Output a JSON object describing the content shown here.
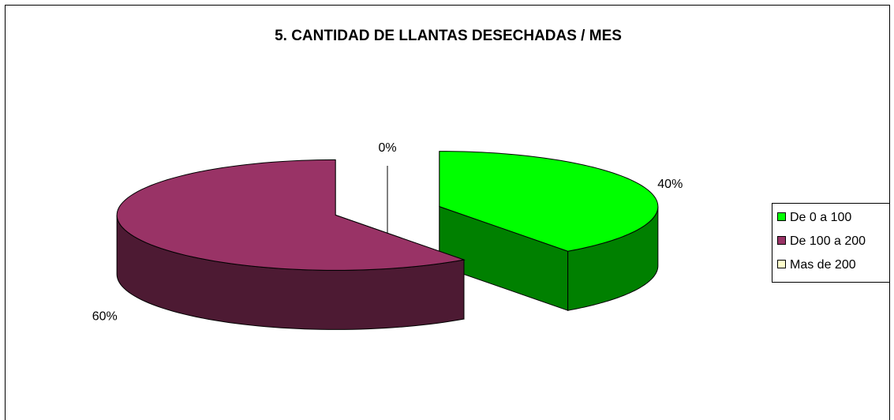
{
  "chart_data": {
    "type": "pie",
    "title": "5. CANTIDAD DE LLANTAS DESECHADAS / MES",
    "categories": [
      "De 0 a 100",
      "De 100 a 200",
      "Mas de 200"
    ],
    "values": [
      40,
      60,
      0
    ],
    "value_labels": [
      "40%",
      "60%",
      "0%"
    ],
    "colors": [
      "#00ff00",
      "#993366",
      "#ffffcc"
    ],
    "legend": "right"
  }
}
